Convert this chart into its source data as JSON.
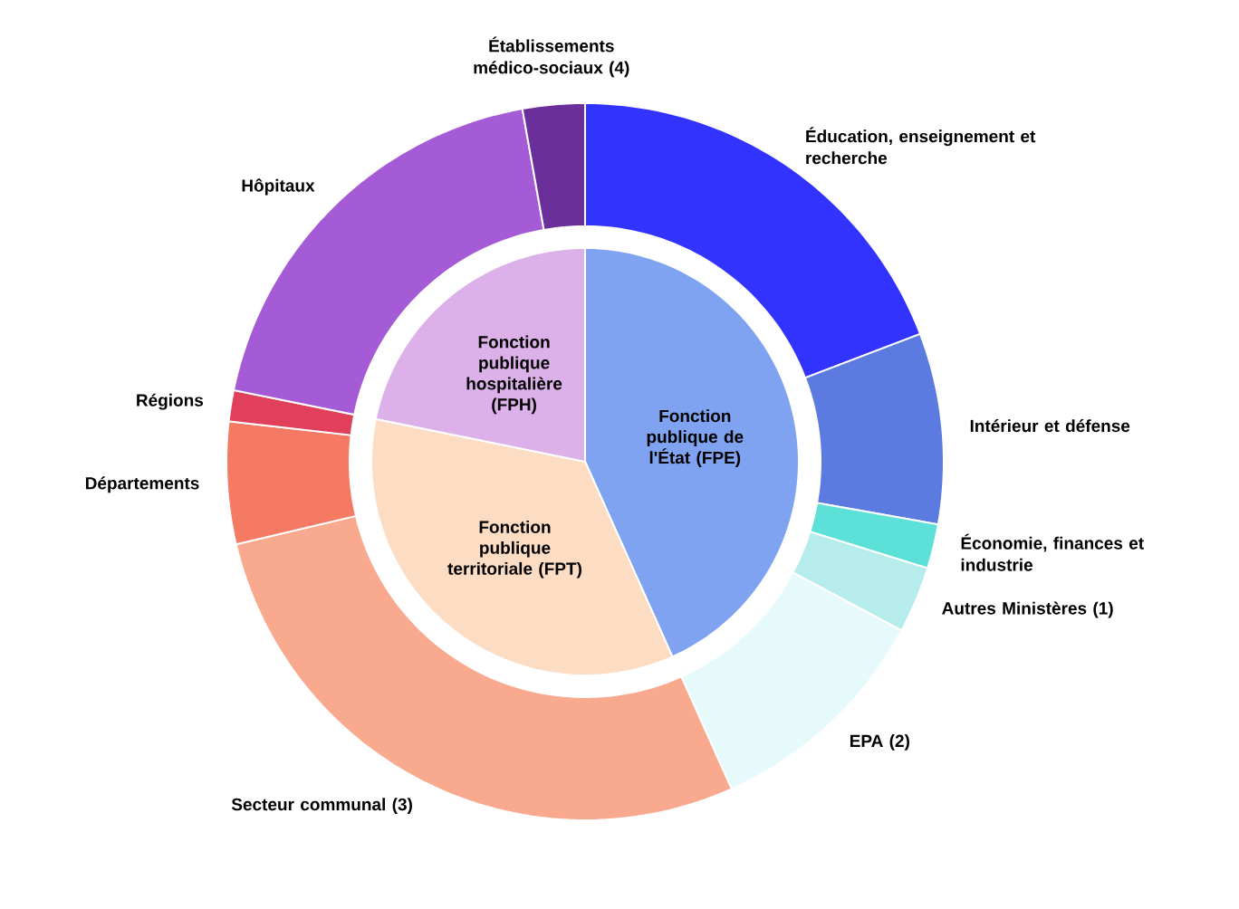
{
  "chart_data": [
    {
      "type": "pie",
      "categories": [
        "Fonction publique de l'État (FPE)",
        "Fonction publique territoriale (FPT)",
        "Fonction publique hospitalière (FPH)"
      ],
      "values": [
        43.3,
        34.9,
        21.8
      ],
      "colors": [
        "#7fa3f0",
        "#fddcc4",
        "#dcb0e8"
      ]
    },
    {
      "type": "donut",
      "categories": [
        "Éducation, enseignement et recherche",
        "Intérieur et défense",
        "Économie, finances et industrie",
        "Autres Ministères (1)",
        "EPA (2)",
        "Secteur communal (3)",
        "Départements",
        "Régions",
        "Hôpitaux",
        "Établissements médico-sociaux (4)"
      ],
      "values": [
        19.2,
        8.6,
        2.0,
        3.0,
        10.5,
        28.0,
        5.5,
        1.4,
        19.0,
        2.8
      ],
      "colors": [
        "#3333ff",
        "#5b7be0",
        "#5ce0d8",
        "#b6ecec",
        "#e6fafc",
        "#f9a98e",
        "#f47a64",
        "#e0405a",
        "#a55ad6",
        "#6a2f9a"
      ]
    }
  ]
}
